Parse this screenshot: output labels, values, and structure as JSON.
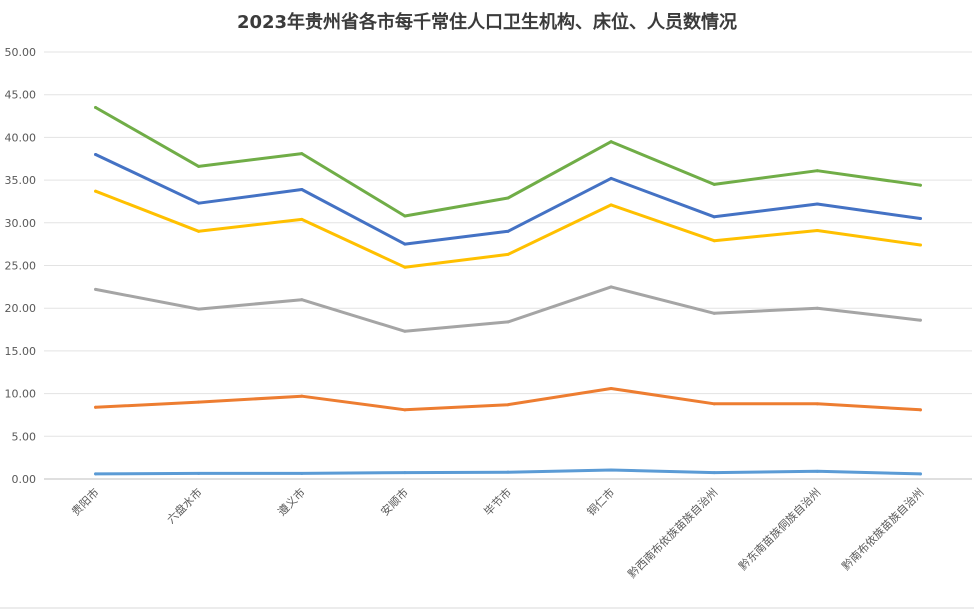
{
  "chart_data": {
    "type": "line",
    "title": "2023年贵州省各市每千常住人口卫生机构、床位、人员数情况",
    "xlabel": "",
    "ylabel": "",
    "ylim": [
      0,
      50
    ],
    "yticks": [
      "0.00",
      "5.00",
      "10.00",
      "15.00",
      "20.00",
      "25.00",
      "30.00",
      "35.00",
      "40.00",
      "45.00",
      "50.00"
    ],
    "grid": true,
    "legend": "none",
    "categories": [
      "贵阳市",
      "六盘水市",
      "遵义市",
      "安顺市",
      "毕节市",
      "铜仁市",
      "黔西南布依族苗族自治州",
      "黔东南苗族侗族自治州",
      "黔南布依族苗族自治州"
    ],
    "series": [
      {
        "color": "#5b9bd5",
        "values": [
          0.6,
          0.65,
          0.65,
          0.75,
          0.8,
          1.05,
          0.75,
          0.9,
          0.6
        ]
      },
      {
        "color": "#ed7d31",
        "values": [
          8.4,
          9.0,
          9.7,
          8.1,
          8.7,
          10.6,
          8.8,
          8.8,
          8.1
        ]
      },
      {
        "color": "#a5a5a5",
        "values": [
          22.2,
          19.9,
          21.0,
          17.3,
          18.4,
          22.5,
          19.4,
          20.0,
          18.6
        ]
      },
      {
        "color": "#ffc000",
        "values": [
          33.7,
          29.0,
          30.4,
          24.8,
          26.3,
          32.1,
          27.9,
          29.1,
          27.4
        ]
      },
      {
        "color": "#4472c4",
        "values": [
          38.0,
          32.3,
          33.9,
          27.5,
          29.0,
          35.2,
          30.7,
          32.2,
          30.5
        ]
      },
      {
        "color": "#70ad47",
        "values": [
          43.5,
          36.6,
          38.1,
          30.8,
          32.9,
          39.5,
          34.5,
          36.1,
          34.4
        ]
      }
    ]
  }
}
